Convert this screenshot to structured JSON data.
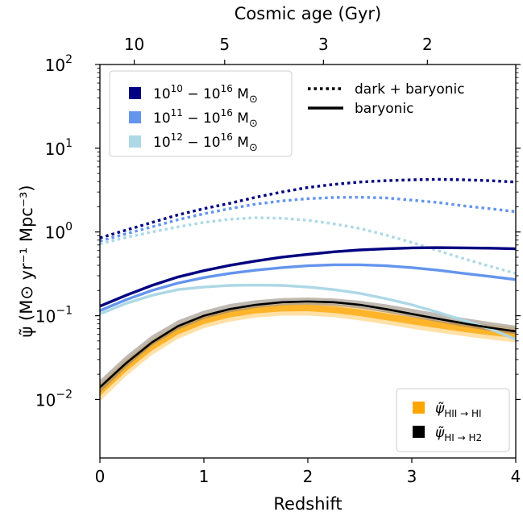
{
  "chart_data": {
    "type": "line",
    "xlabel": "Redshift",
    "ylabel": "ψ̃ (M⊙ yr⁻¹ Mpc⁻³)",
    "top_axis_label": "Cosmic age (Gyr)",
    "xlim": [
      0,
      4
    ],
    "ylim": [
      0.002,
      100
    ],
    "yscale": "log",
    "x_ticks": [
      "0",
      "1",
      "2",
      "3",
      "4"
    ],
    "y_ticks": [
      {
        "value": 0.01,
        "base": "10",
        "exp": "−2"
      },
      {
        "value": 0.1,
        "base": "10",
        "exp": "−1"
      },
      {
        "value": 1,
        "base": "10",
        "exp": "0"
      },
      {
        "value": 10,
        "base": "10",
        "exp": "1"
      },
      {
        "value": 100,
        "base": "10",
        "exp": "2"
      }
    ],
    "top_ticks": [
      {
        "label": "10",
        "redshift": 0.33
      },
      {
        "label": "5",
        "redshift": 1.2
      },
      {
        "label": "3",
        "redshift": 2.15
      },
      {
        "label": "2",
        "redshift": 3.15
      }
    ],
    "grid": false,
    "x": [
      0.0,
      0.25,
      0.5,
      0.75,
      1.0,
      1.25,
      1.5,
      1.75,
      2.0,
      2.25,
      2.5,
      2.75,
      3.0,
      3.25,
      3.5,
      3.75,
      4.0
    ],
    "series": [
      {
        "name": "dark + baryonic",
        "mass_range": "10^10 − 10^16 M⊙",
        "color": "#000080",
        "style": "dotted",
        "values": [
          0.85,
          1.05,
          1.3,
          1.6,
          1.9,
          2.2,
          2.6,
          3.0,
          3.4,
          3.7,
          3.95,
          4.1,
          4.2,
          4.25,
          4.2,
          4.1,
          3.95
        ]
      },
      {
        "name": "dark + baryonic",
        "mass_range": "10^11 − 10^16 M⊙",
        "color": "#6495ED",
        "style": "dotted",
        "values": [
          0.78,
          0.95,
          1.15,
          1.4,
          1.65,
          1.9,
          2.15,
          2.35,
          2.5,
          2.58,
          2.6,
          2.55,
          2.4,
          2.25,
          2.05,
          1.9,
          1.75
        ]
      },
      {
        "name": "dark + baryonic",
        "mass_range": "10^12 − 10^16 M⊙",
        "color": "#ADD8E6",
        "style": "dotted",
        "values": [
          0.72,
          0.86,
          1.0,
          1.15,
          1.3,
          1.42,
          1.48,
          1.46,
          1.38,
          1.25,
          1.1,
          0.92,
          0.75,
          0.6,
          0.48,
          0.39,
          0.32
        ]
      },
      {
        "name": "baryonic",
        "mass_range": "10^10 − 10^16 M⊙",
        "color": "#000080",
        "style": "solid",
        "values": [
          0.13,
          0.175,
          0.23,
          0.29,
          0.345,
          0.4,
          0.45,
          0.5,
          0.54,
          0.58,
          0.61,
          0.63,
          0.645,
          0.65,
          0.645,
          0.64,
          0.63
        ]
      },
      {
        "name": "baryonic",
        "mass_range": "10^11 − 10^16 M⊙",
        "color": "#6495ED",
        "style": "solid",
        "values": [
          0.115,
          0.155,
          0.2,
          0.245,
          0.285,
          0.32,
          0.35,
          0.375,
          0.395,
          0.405,
          0.405,
          0.395,
          0.375,
          0.35,
          0.32,
          0.295,
          0.27
        ]
      },
      {
        "name": "baryonic",
        "mass_range": "10^12 − 10^16 M⊙",
        "color": "#ADD8E6",
        "style": "solid",
        "values": [
          0.105,
          0.14,
          0.175,
          0.205,
          0.22,
          0.23,
          0.232,
          0.23,
          0.22,
          0.205,
          0.185,
          0.16,
          0.135,
          0.11,
          0.088,
          0.07,
          0.052
        ]
      },
      {
        "name": "ψ̃ HII→HI",
        "color": "#FFA500",
        "style": "band",
        "values": [
          0.0125,
          0.024,
          0.043,
          0.066,
          0.088,
          0.106,
          0.118,
          0.125,
          0.126,
          0.12,
          0.11,
          0.098,
          0.088,
          0.079,
          0.071,
          0.065,
          0.06
        ],
        "lower": [
          0.0095,
          0.019,
          0.034,
          0.053,
          0.071,
          0.085,
          0.095,
          0.1,
          0.1,
          0.096,
          0.088,
          0.079,
          0.07,
          0.063,
          0.057,
          0.052,
          0.048
        ],
        "upper": [
          0.0155,
          0.03,
          0.052,
          0.079,
          0.104,
          0.124,
          0.137,
          0.144,
          0.145,
          0.139,
          0.128,
          0.116,
          0.104,
          0.094,
          0.085,
          0.078,
          0.072
        ]
      },
      {
        "name": "ψ̃ HI→H2",
        "color": "#000000",
        "style": "line-with-band",
        "values": [
          0.014,
          0.027,
          0.048,
          0.075,
          0.1,
          0.12,
          0.135,
          0.145,
          0.148,
          0.145,
          0.135,
          0.12,
          0.105,
          0.092,
          0.081,
          0.072,
          0.065
        ],
        "lower": [
          0.012,
          0.024,
          0.044,
          0.068,
          0.091,
          0.11,
          0.124,
          0.133,
          0.135,
          0.131,
          0.122,
          0.109,
          0.096,
          0.084,
          0.074,
          0.066,
          0.06
        ],
        "upper": [
          0.017,
          0.033,
          0.058,
          0.088,
          0.115,
          0.138,
          0.153,
          0.162,
          0.165,
          0.161,
          0.151,
          0.137,
          0.121,
          0.107,
          0.094,
          0.084,
          0.076
        ]
      }
    ],
    "legend_top_left": {
      "placement": "upper-left",
      "entries": [
        {
          "base": "10",
          "e1": "10",
          "mid": " − 10",
          "e2": "16",
          "unit": " M",
          "sub": "⊙",
          "color": "#000080"
        },
        {
          "base": "10",
          "e1": "11",
          "mid": " − 10",
          "e2": "16",
          "unit": " M",
          "sub": "⊙",
          "color": "#6495ED"
        },
        {
          "base": "10",
          "e1": "12",
          "mid": " − 10",
          "e2": "16",
          "unit": " M",
          "sub": "⊙",
          "color": "#ADD8E6"
        }
      ]
    },
    "legend_top_right": {
      "placement": "upper-right",
      "entries": [
        {
          "label": "dark + baryonic",
          "style": "dotted"
        },
        {
          "label": "baryonic",
          "style": "solid"
        }
      ]
    },
    "legend_bottom_right": {
      "placement": "lower-right",
      "entries": [
        {
          "symbol": "ψ̃",
          "sub": "HII → HI",
          "color": "#FFA500"
        },
        {
          "symbol": "ψ̃",
          "sub": "HI → H2",
          "color": "#000000"
        }
      ]
    }
  }
}
